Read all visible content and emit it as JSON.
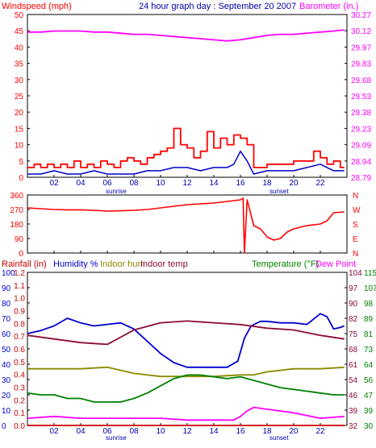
{
  "chart_data": [
    {
      "type": "line",
      "title": "24 hour graph day : September 20 2007",
      "left_axis_label": "Windspeed (mph)",
      "right_axis_label": "Barometer (in.)",
      "y_left_ticks": [
        "50",
        "45",
        "40",
        "35",
        "30",
        "25",
        "20",
        "15",
        "10",
        "5",
        "0"
      ],
      "ylim_left": [
        0,
        50
      ],
      "y_right_ticks": [
        "30.27",
        "30.12",
        "29.97",
        "29.83",
        "29.68",
        "29.53",
        "29.38",
        "29.23",
        "29.09",
        "28.94",
        "28.79"
      ],
      "ylim_right": [
        28.79,
        30.27
      ],
      "x_ticks": [
        "02",
        "04",
        "06",
        "08",
        "10",
        "12",
        "14",
        "16",
        "18",
        "20",
        "22"
      ],
      "x_range_hours": [
        0,
        24
      ],
      "sunrise_label": "sunrise",
      "sunset_label": "sunset",
      "colors": {
        "windspeed_gust": "#ff0000",
        "windspeed_avg": "#0000cc",
        "barometer": "#ff00ff"
      },
      "series": [
        {
          "key": "barometer",
          "axis": "right",
          "x": [
            0,
            1,
            2,
            3,
            4,
            5,
            6,
            7,
            8,
            9,
            10,
            11,
            12,
            13,
            14,
            15,
            16,
            17,
            18,
            19,
            20,
            21,
            22,
            23,
            23.8
          ],
          "y": [
            30.11,
            30.11,
            30.12,
            30.12,
            30.12,
            30.11,
            30.11,
            30.1,
            30.09,
            30.09,
            30.08,
            30.07,
            30.06,
            30.05,
            30.04,
            30.03,
            30.04,
            30.06,
            30.08,
            30.09,
            30.09,
            30.1,
            30.11,
            30.12,
            30.13
          ]
        },
        {
          "key": "windspeed_gust",
          "axis": "left",
          "x": [
            0,
            0.5,
            1,
            1.5,
            2,
            2.5,
            3,
            3.5,
            4,
            4.5,
            5,
            5.5,
            6,
            6.5,
            7,
            7.5,
            8,
            8.5,
            9,
            9.5,
            10,
            10.5,
            11,
            11.5,
            12,
            12.5,
            13,
            13.5,
            14,
            14.5,
            15,
            15.5,
            16,
            16.5,
            17,
            17.5,
            18,
            18.5,
            19,
            19.5,
            20,
            20.5,
            21,
            21.5,
            22,
            22.5,
            23,
            23.5,
            23.8
          ],
          "y": [
            3,
            4,
            3,
            4,
            3,
            4,
            3,
            5,
            3,
            4,
            3,
            5,
            4,
            3,
            5,
            6,
            5,
            4,
            6,
            7,
            8,
            9,
            15,
            10,
            9,
            6,
            8,
            14,
            9,
            12,
            10,
            13,
            12,
            10,
            3,
            3,
            4,
            4,
            4,
            4,
            5,
            5,
            5,
            8,
            6,
            4,
            5,
            3,
            3
          ]
        },
        {
          "key": "windspeed_avg",
          "axis": "left",
          "x": [
            0,
            1,
            2,
            3,
            4,
            5,
            6,
            7,
            8,
            9,
            10,
            11,
            12,
            13,
            14,
            15,
            15.5,
            16,
            16.5,
            17,
            18,
            19,
            20,
            21,
            22,
            23,
            23.8
          ],
          "y": [
            1,
            1,
            2,
            1,
            1,
            2,
            1,
            1,
            1,
            2,
            2,
            3,
            3,
            2,
            3,
            3,
            4,
            8,
            5,
            1,
            2,
            2,
            2,
            3,
            4,
            2,
            2
          ]
        }
      ]
    },
    {
      "type": "line",
      "y_left_ticks": [
        "360",
        "270",
        "180",
        "90",
        "0"
      ],
      "ylim": [
        0,
        360
      ],
      "compass_labels": [
        "N",
        "W",
        "S",
        "E",
        "N"
      ],
      "color": "#ff0000",
      "series": [
        {
          "key": "wind_direction",
          "x": [
            0,
            1,
            2,
            3,
            4,
            5,
            6,
            7,
            8,
            9,
            10,
            11,
            12,
            13,
            14,
            15,
            16,
            16.2,
            16.3,
            16.5,
            17,
            17.5,
            18,
            18.5,
            19,
            19.5,
            20,
            21,
            22,
            22.5,
            23,
            23.8
          ],
          "y": [
            280,
            275,
            270,
            268,
            268,
            265,
            260,
            262,
            265,
            270,
            280,
            290,
            300,
            305,
            310,
            320,
            330,
            340,
            0,
            330,
            170,
            150,
            100,
            80,
            90,
            130,
            150,
            170,
            180,
            200,
            250,
            255
          ]
        }
      ]
    },
    {
      "type": "line",
      "left_axis_labels": [
        "Rainfall (in)",
        "Humidity %",
        "Indoor hum",
        "Indoor temp"
      ],
      "right_axis_labels": [
        "Temperature (°F)",
        "Dew Point"
      ],
      "y_left_ticks_rain": [
        "1.2",
        "1.1",
        "1.0",
        "0.9",
        "0.8",
        "0.7",
        "0.6",
        "0.5",
        "0.4",
        "0.3",
        "0.2",
        "0.1",
        "0.0"
      ],
      "ylim_rain": [
        0,
        1.2
      ],
      "y_left_ticks_humidity": [
        "100",
        "90",
        "80",
        "70",
        "60",
        "50",
        "40",
        "30",
        "20",
        "10",
        "0"
      ],
      "ylim_humidity": [
        0,
        100
      ],
      "y_right_ticks_inner": [
        "104",
        "97",
        "90",
        "82",
        "75",
        "68",
        "61",
        "54",
        "46",
        "39",
        "32"
      ],
      "y_right_ticks_outer": [
        "115",
        "107",
        "98",
        "89",
        "81",
        "73",
        "64",
        "56",
        "47",
        "39",
        "30"
      ],
      "ylim_temp": [
        30,
        115
      ],
      "x_ticks": [
        "02",
        "04",
        "06",
        "08",
        "10",
        "12",
        "14",
        "16",
        "18",
        "20",
        "22"
      ],
      "sunrise_label": "sunrise",
      "sunset_label": "sunset",
      "colors": {
        "rainfall": "#cc0000",
        "humidity": "#0000cc",
        "indoor_hum": "#8a8a00",
        "indoor_temp": "#8b0a3a",
        "temperature": "#008000",
        "dew_point": "#ff00ff"
      },
      "series": [
        {
          "key": "humidity",
          "axis": "humidity",
          "x": [
            0,
            1,
            2,
            3,
            4,
            5,
            6,
            7,
            8,
            9,
            10,
            11,
            12,
            13,
            14,
            15,
            15.8,
            16.3,
            16.8,
            17.5,
            18,
            19,
            20,
            21,
            22,
            22.5,
            23,
            23.5,
            23.8
          ],
          "y": [
            60,
            62,
            65,
            70,
            67,
            65,
            66,
            67,
            63,
            55,
            47,
            41,
            38,
            38,
            38,
            38,
            42,
            57,
            65,
            68,
            68,
            67,
            67,
            66,
            73,
            71,
            63,
            64,
            65
          ]
        },
        {
          "key": "indoor_temp",
          "axis": "temp",
          "x": [
            0,
            2,
            4,
            6,
            8,
            10,
            12,
            14,
            16,
            18,
            20,
            22,
            23.8
          ],
          "y": [
            80,
            78,
            76,
            75,
            83,
            87,
            88,
            87,
            86,
            84,
            83,
            80,
            78
          ]
        },
        {
          "key": "indoor_hum",
          "axis": "humidity",
          "x": [
            0,
            2,
            4,
            6,
            8,
            10,
            12,
            14,
            16,
            17,
            18,
            20,
            22,
            23.8
          ],
          "y": [
            37,
            37,
            37,
            38,
            34,
            32,
            32,
            32,
            33,
            33,
            35,
            37,
            37,
            38
          ]
        },
        {
          "key": "temperature",
          "axis": "temp",
          "x": [
            0,
            1,
            2,
            3,
            4,
            5,
            6,
            7,
            8,
            9,
            10,
            11,
            12,
            13,
            14,
            15,
            16,
            17,
            18,
            19,
            20,
            21,
            22,
            23,
            23.8
          ],
          "y": [
            48,
            47,
            47,
            45,
            45,
            43,
            43,
            43,
            45,
            48,
            52,
            56,
            58,
            58,
            57,
            56,
            57,
            55,
            53,
            51,
            50,
            49,
            48,
            47,
            47
          ]
        },
        {
          "key": "dew_point",
          "axis": "temp",
          "x": [
            0,
            2,
            4,
            6,
            8,
            10,
            12,
            14,
            15.5,
            16,
            16.5,
            17,
            18,
            19,
            20,
            22,
            23.8
          ],
          "y": [
            34,
            35,
            34,
            34,
            34,
            34,
            33,
            33,
            33,
            35,
            38,
            40,
            39,
            38,
            37,
            34,
            35
          ]
        },
        {
          "key": "rainfall",
          "axis": "rain",
          "x": [
            0,
            23.8
          ],
          "y": [
            0,
            0
          ]
        }
      ]
    }
  ]
}
